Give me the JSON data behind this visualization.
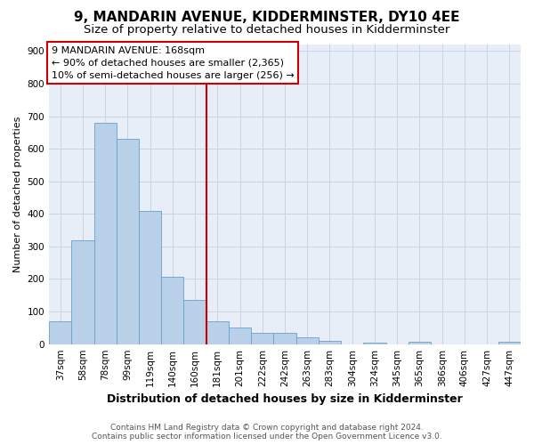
{
  "title": "9, MANDARIN AVENUE, KIDDERMINSTER, DY10 4EE",
  "subtitle": "Size of property relative to detached houses in Kidderminster",
  "xlabel": "Distribution of detached houses by size in Kidderminster",
  "ylabel": "Number of detached properties",
  "categories": [
    "37sqm",
    "58sqm",
    "78sqm",
    "99sqm",
    "119sqm",
    "140sqm",
    "160sqm",
    "181sqm",
    "201sqm",
    "222sqm",
    "242sqm",
    "263sqm",
    "283sqm",
    "304sqm",
    "324sqm",
    "345sqm",
    "365sqm",
    "386sqm",
    "406sqm",
    "427sqm",
    "447sqm"
  ],
  "values": [
    70,
    320,
    680,
    630,
    410,
    207,
    135,
    70,
    50,
    35,
    35,
    22,
    10,
    0,
    5,
    0,
    8,
    0,
    0,
    0,
    8
  ],
  "bar_color": "#b8d0e8",
  "bar_edge_color": "#6a9fc8",
  "vline_x": 6.5,
  "vline_color": "#cc0000",
  "annotation_text_line1": "9 MANDARIN AVENUE: 168sqm",
  "annotation_text_line2": "← 90% of detached houses are smaller (2,365)",
  "annotation_text_line3": "10% of semi-detached houses are larger (256) →",
  "annotation_box_color": "#cc0000",
  "annotation_fill_color": "#ffffff",
  "ylim": [
    0,
    920
  ],
  "yticks": [
    0,
    100,
    200,
    300,
    400,
    500,
    600,
    700,
    800,
    900
  ],
  "grid_color": "#c8d4e4",
  "bg_color": "#e8eef8",
  "footer_line1": "Contains HM Land Registry data © Crown copyright and database right 2024.",
  "footer_line2": "Contains public sector information licensed under the Open Government Licence v3.0.",
  "title_fontsize": 11,
  "subtitle_fontsize": 9.5,
  "xlabel_fontsize": 9,
  "ylabel_fontsize": 8,
  "tick_fontsize": 7.5,
  "annotation_fontsize": 8,
  "footer_fontsize": 6.5
}
